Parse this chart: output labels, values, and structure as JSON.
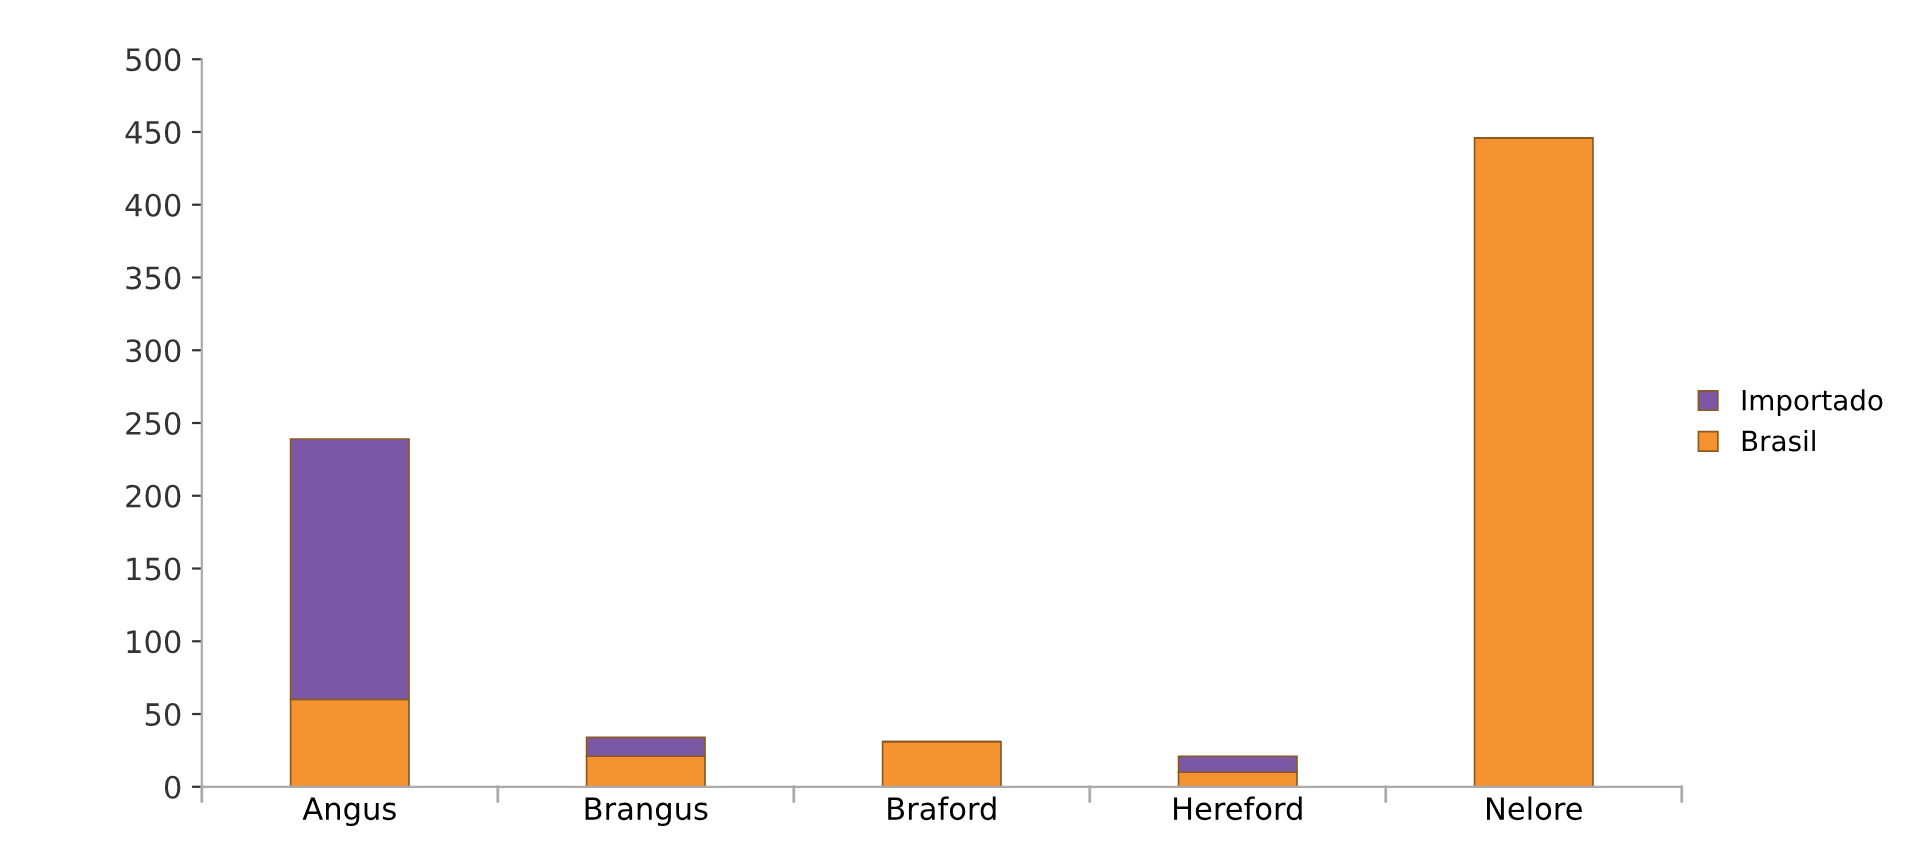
{
  "chart_data": {
    "type": "bar",
    "stacked": true,
    "categories": [
      "Angus",
      "Brangus",
      "Braford",
      "Hereford",
      "Nelore"
    ],
    "series": [
      {
        "name": "Brasil",
        "color": "#f59331",
        "values": [
          60,
          21,
          31,
          10,
          446
        ]
      },
      {
        "name": "Importado",
        "color": "#7a58a6",
        "values": [
          179,
          13,
          null,
          11,
          null
        ]
      }
    ],
    "ylim": [
      0,
      500
    ],
    "yticks": [
      0,
      50,
      100,
      150,
      200,
      250,
      300,
      350,
      400,
      450,
      500
    ],
    "grid": false,
    "legend": "right"
  }
}
